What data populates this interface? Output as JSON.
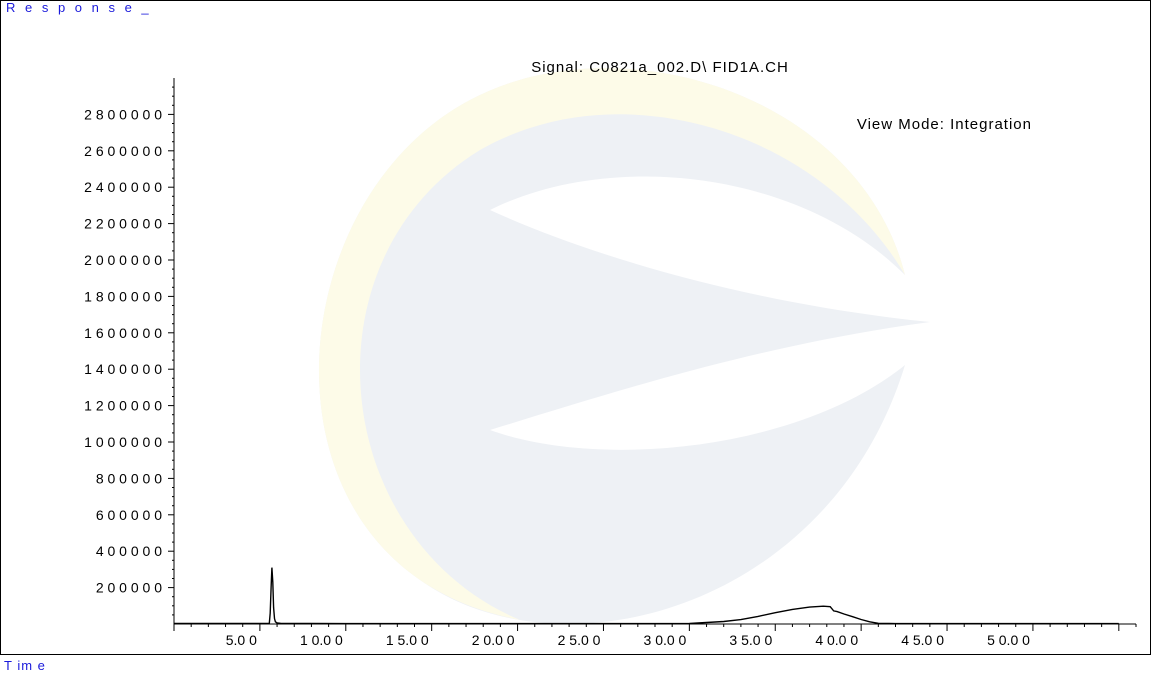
{
  "labels": {
    "y_axis": "R e s p o n s e _",
    "x_axis": "T im e"
  },
  "chart_data": {
    "type": "line",
    "title": "Signal: C0821a_002.D\\ FID1A.CH",
    "subtitle": "View Mode: Integration",
    "xlabel": "T im e",
    "ylabel": "R e s p o n s e _",
    "xlim": [
      0.0,
      56.0
    ],
    "ylim": [
      0,
      3000000
    ],
    "x_ticks": [
      5.0,
      10.0,
      15.0,
      20.0,
      25.0,
      30.0,
      35.0,
      40.0,
      45.0,
      50.0
    ],
    "x_tick_labels": [
      "5.0 0",
      "1 0.0 0",
      "1 5.0 0",
      "2 0.0 0",
      "2 5.0 0",
      "3 0.0 0",
      "3 5.0 0",
      "4 0.0 0",
      "4 5.0 0",
      "5 0.0 0"
    ],
    "y_ticks": [
      200000,
      400000,
      600000,
      800000,
      1000000,
      1200000,
      1400000,
      1600000,
      1800000,
      2000000,
      2200000,
      2400000,
      2600000,
      2800000
    ],
    "y_tick_labels": [
      "2 0 0 0 0 0",
      "4 0 0 0 0 0",
      "6 0 0 0 0 0",
      "8 0 0 0 0 0",
      "1 0 0 0 0 0 0",
      "1 2 0 0 0 0 0",
      "1 4 0 0 0 0 0",
      "1 6 0 0 0 0 0",
      "1 8 0 0 0 0 0",
      "2 0 0 0 0 0 0",
      "2 2 0 0 0 0 0",
      "2 4 0 0 0 0 0",
      "2 6 0 0 0 0 0",
      "2 8 0 0 0 0 0"
    ],
    "grid": false,
    "series": [
      {
        "color": "#000000",
        "x": [
          0.0,
          5.55,
          5.6,
          5.65,
          5.7,
          5.75,
          5.8,
          5.85,
          5.9,
          6.0,
          6.2,
          6.6,
          8.0,
          10.0,
          15.0,
          20.0,
          25.0,
          28.0,
          30.0,
          31.0,
          32.0,
          33.0,
          34.0,
          35.0,
          36.0,
          37.0,
          37.8,
          38.2,
          38.4,
          38.6,
          39.0,
          39.5,
          40.0,
          40.5,
          41.0,
          42.0,
          45.0,
          50.0,
          55.0
        ],
        "y": [
          3000,
          3000,
          60000,
          200000,
          310000,
          230000,
          90000,
          30000,
          12000,
          6000,
          4000,
          3000,
          3000,
          2000,
          2000,
          2000,
          2000,
          2000,
          3000,
          8000,
          14000,
          24000,
          42000,
          62000,
          80000,
          93000,
          98000,
          95000,
          72000,
          68000,
          55000,
          40000,
          25000,
          12000,
          4000,
          2000,
          2000,
          2000,
          2000
        ]
      }
    ]
  }
}
